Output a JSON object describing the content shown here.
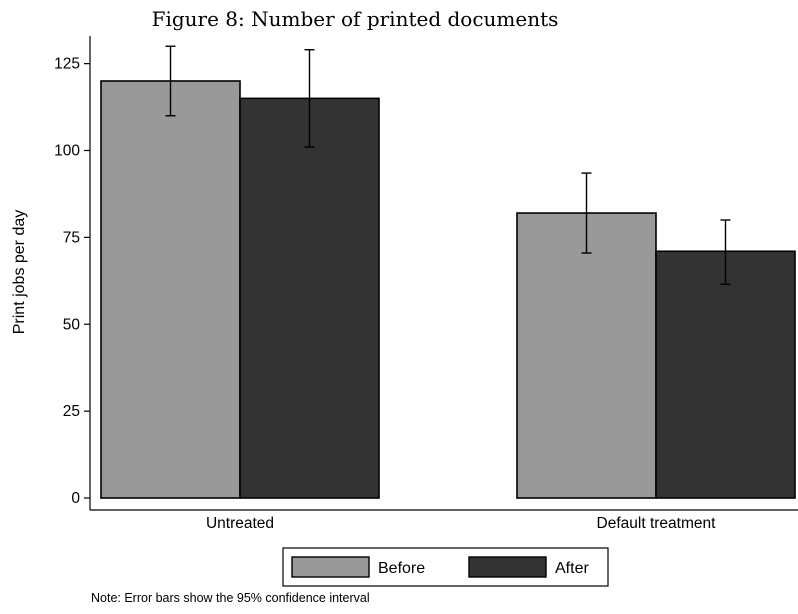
{
  "chart_data": {
    "type": "bar",
    "title": "Figure 8: Number of printed documents",
    "xlabel": "",
    "ylabel": "Print jobs per day",
    "categories": [
      "Untreated",
      "Default treatment"
    ],
    "series": [
      {
        "name": "Before",
        "color": "#999999",
        "values": [
          120,
          82
        ],
        "ci_low": [
          110,
          70.5
        ],
        "ci_high": [
          130,
          93.5
        ]
      },
      {
        "name": "After",
        "color": "#333333",
        "values": [
          115,
          71
        ],
        "ci_low": [
          101,
          61.5
        ],
        "ci_high": [
          129,
          80
        ]
      }
    ],
    "ylim": [
      0,
      135
    ],
    "yticks": [
      0,
      25,
      50,
      75,
      100,
      125
    ],
    "ytick_labels": [
      "0",
      "25",
      "50",
      "75",
      "100",
      "125"
    ],
    "grid": false,
    "legend_position": "bottom",
    "note": "Note: Error bars show the 95% confidence interval"
  }
}
